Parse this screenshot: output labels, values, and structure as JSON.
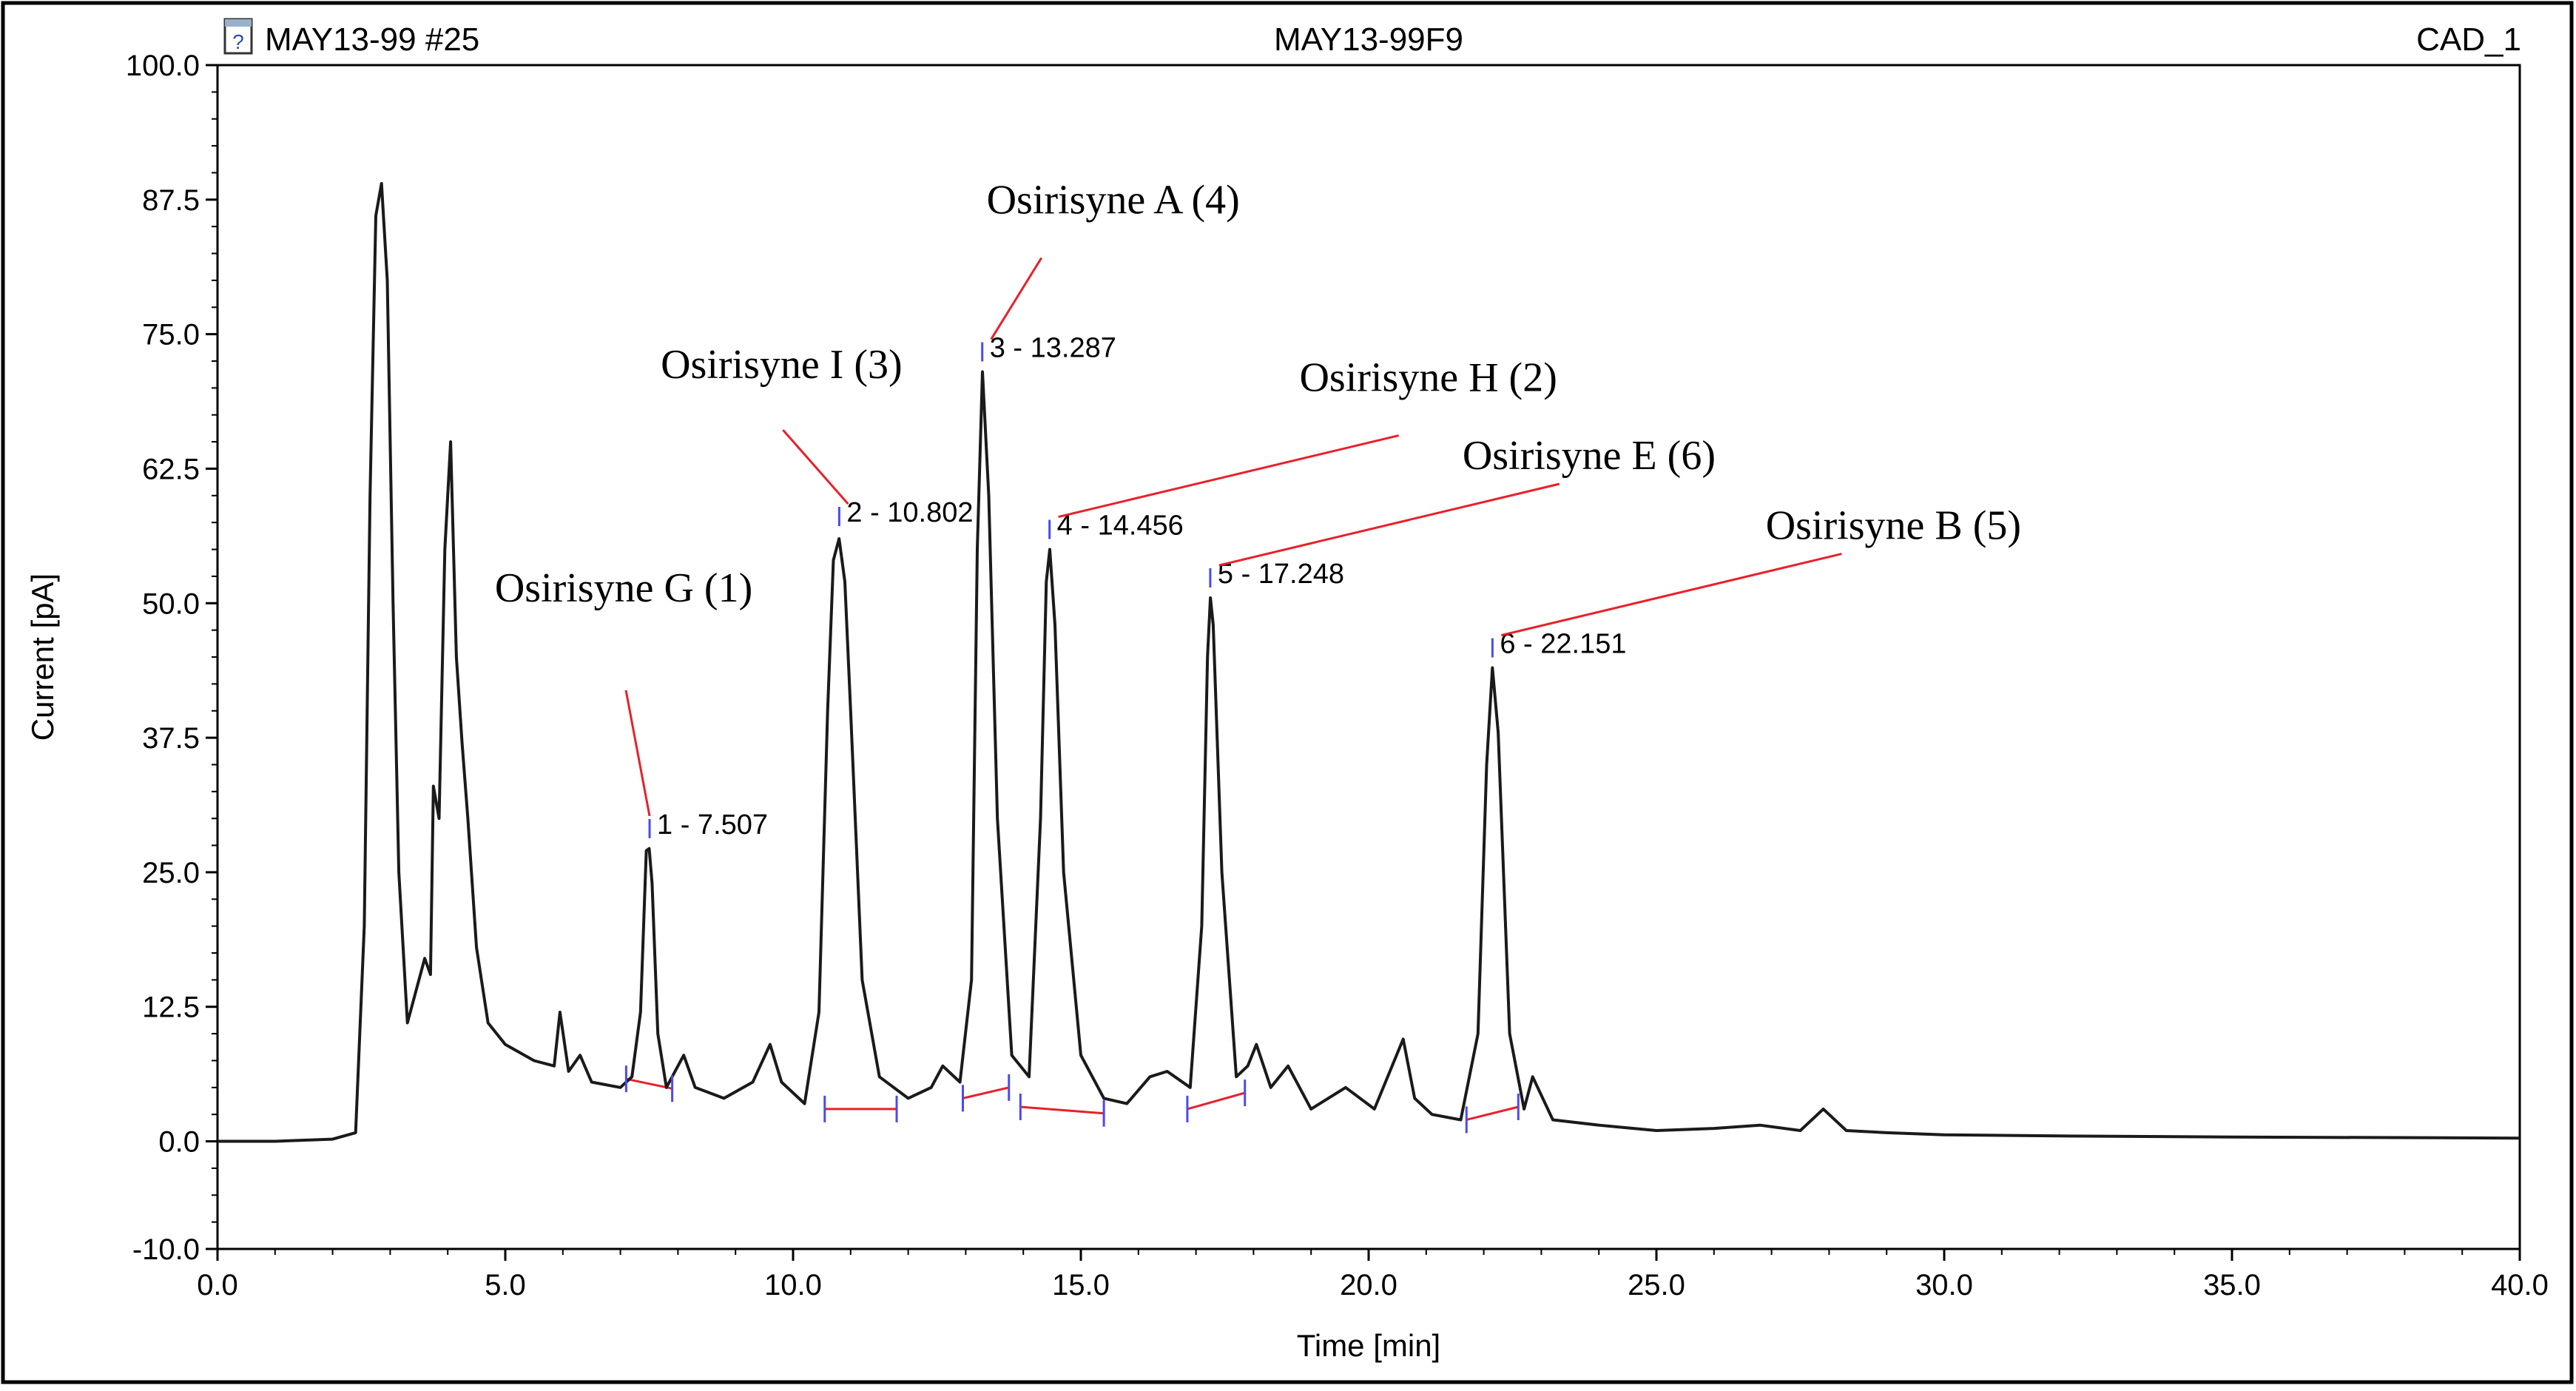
{
  "header": {
    "left": "MAY13-99 #25",
    "center": "MAY13-99F9",
    "right": "CAD_1",
    "icon": "document-help-icon"
  },
  "colors": {
    "trace": "#1a1a1a",
    "baseline": "#e8202a",
    "callout": "#e8202a",
    "marker": "#4a4af0",
    "axis": "#000000",
    "frame": "#000000"
  },
  "chart_data": {
    "type": "line",
    "title": "",
    "xlabel": "Time [min]",
    "ylabel": "Current [pA]",
    "xlim": [
      0,
      40
    ],
    "ylim": [
      -10,
      100
    ],
    "grid": false,
    "x_ticks": [
      "0.0",
      "5.0",
      "10.0",
      "15.0",
      "20.0",
      "25.0",
      "30.0",
      "35.0",
      "40.0"
    ],
    "y_ticks": [
      "-10.0",
      "0.0",
      "12.5",
      "25.0",
      "37.5",
      "50.0",
      "62.5",
      "75.0",
      "87.5",
      "100.0"
    ],
    "series": [
      {
        "x": [
          0.0,
          1.0,
          2.0,
          2.4,
          2.55,
          2.65,
          2.75,
          2.85,
          2.95,
          3.05,
          3.15,
          3.3,
          3.45,
          3.6,
          3.7,
          3.75,
          3.85,
          3.95,
          4.05,
          4.15,
          4.25,
          4.35,
          4.5,
          4.7,
          5.0,
          5.5,
          5.85,
          5.95,
          6.1,
          6.3,
          6.5,
          7.0,
          7.2,
          7.35,
          7.45,
          7.5,
          7.55,
          7.65,
          7.8,
          8.0,
          8.1,
          8.3,
          8.8,
          9.3,
          9.6,
          9.8,
          10.2,
          10.45,
          10.6,
          10.7,
          10.8,
          10.9,
          11.0,
          11.2,
          11.5,
          12.0,
          12.4,
          12.6,
          12.9,
          13.1,
          13.2,
          13.29,
          13.4,
          13.55,
          13.8,
          14.1,
          14.3,
          14.4,
          14.46,
          14.55,
          14.7,
          15.0,
          15.4,
          15.8,
          16.2,
          16.5,
          16.9,
          17.1,
          17.2,
          17.25,
          17.3,
          17.45,
          17.7,
          17.9,
          18.05,
          18.3,
          18.6,
          19.0,
          19.6,
          20.1,
          20.6,
          20.8,
          21.1,
          21.6,
          21.9,
          22.05,
          22.15,
          22.25,
          22.45,
          22.7,
          22.85,
          23.2,
          24.0,
          25.0,
          26.0,
          26.8,
          27.5,
          27.9,
          28.3,
          29.0,
          30.0,
          32.0,
          35.0,
          40.0
        ],
        "y": [
          0.0,
          0.0,
          0.2,
          0.8,
          20.0,
          60.0,
          86.0,
          89.0,
          80.0,
          50.0,
          25.0,
          11.0,
          14.0,
          17.0,
          15.5,
          33.0,
          30.0,
          55.0,
          65.0,
          45.0,
          37.0,
          30.0,
          18.0,
          11.0,
          9.0,
          7.5,
          7.0,
          12.0,
          6.5,
          8.0,
          5.5,
          5.0,
          6.0,
          12.0,
          27.0,
          27.2,
          24.0,
          10.0,
          5.0,
          7.0,
          8.0,
          5.0,
          4.0,
          5.5,
          9.0,
          5.5,
          3.5,
          12.0,
          40.0,
          54.0,
          56.0,
          52.0,
          40.0,
          15.0,
          6.0,
          4.0,
          5.0,
          7.0,
          5.5,
          15.0,
          55.0,
          71.5,
          60.0,
          30.0,
          8.0,
          6.0,
          30.0,
          52.0,
          55.0,
          48.0,
          25.0,
          8.0,
          4.0,
          3.5,
          6.0,
          6.5,
          5.0,
          20.0,
          45.0,
          50.5,
          48.0,
          25.0,
          6.0,
          7.0,
          9.0,
          5.0,
          7.0,
          3.0,
          5.0,
          3.0,
          9.5,
          4.0,
          2.5,
          2.0,
          10.0,
          35.0,
          44.0,
          38.0,
          10.0,
          3.0,
          6.0,
          2.0,
          1.5,
          1.0,
          1.2,
          1.5,
          1.0,
          3.0,
          1.0,
          0.8,
          0.6,
          0.5,
          0.4,
          0.3
        ]
      }
    ],
    "peaks": [
      {
        "label": "1 - 7.507",
        "time": 7.507,
        "height": 27.2,
        "start": 7.1,
        "end": 7.9,
        "base_start": 5.8,
        "base_end": 4.9
      },
      {
        "label": "2 - 10.802",
        "time": 10.802,
        "height": 56.2,
        "start": 10.55,
        "end": 11.8,
        "base_start": 3.0,
        "base_end": 3.0
      },
      {
        "label": "3 - 13.287",
        "time": 13.287,
        "height": 71.5,
        "start": 12.95,
        "end": 13.75,
        "base_start": 4.0,
        "base_end": 5.0
      },
      {
        "label": "4 - 14.456",
        "time": 14.456,
        "height": 55.0,
        "start": 13.95,
        "end": 15.4,
        "base_start": 3.2,
        "base_end": 2.6
      },
      {
        "label": "5 - 17.248",
        "time": 17.248,
        "height": 50.5,
        "start": 16.85,
        "end": 17.85,
        "base_start": 3.0,
        "base_end": 4.5
      },
      {
        "label": "6 - 22.151",
        "time": 22.151,
        "height": 44.0,
        "start": 21.7,
        "end": 22.6,
        "base_start": 2.0,
        "base_end": 3.2
      }
    ],
    "annotations": [
      {
        "text": "Osirisyne G (1)",
        "peak": 1
      },
      {
        "text": "Osirisyne I (3)",
        "peak": 2
      },
      {
        "text": "Osirisyne A (4)",
        "peak": 3
      },
      {
        "text": "Osirisyne H (2)",
        "peak": 4
      },
      {
        "text": "Osirisyne E (6)",
        "peak": 5
      },
      {
        "text": "Osirisyne B (5)",
        "peak": 6
      }
    ]
  }
}
